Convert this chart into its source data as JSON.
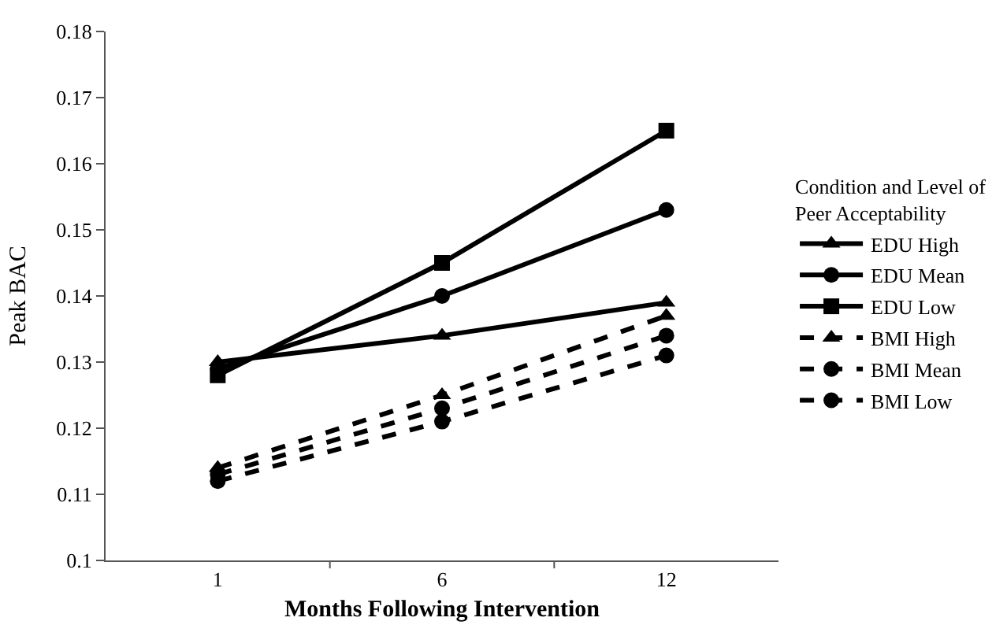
{
  "chart_data": {
    "type": "line",
    "xlabel": "Months Following Intervention",
    "ylabel": "Peak BAC",
    "legend_title": "Condition and Level of Peer Acceptability",
    "legend": "right",
    "categories": [
      "1",
      "6",
      "12"
    ],
    "ylim": [
      0.1,
      0.18
    ],
    "yticks": [
      0.1,
      0.11,
      0.12,
      0.13,
      0.14,
      0.15,
      0.16,
      0.17,
      0.18
    ],
    "series": [
      {
        "name": "EDU High",
        "color": "#000000",
        "marker": "triangle",
        "line_style": "solid",
        "values": [
          0.13,
          0.134,
          0.139
        ]
      },
      {
        "name": "EDU Mean",
        "color": "#000000",
        "marker": "circle",
        "line_style": "solid",
        "values": [
          0.129,
          0.14,
          0.153
        ]
      },
      {
        "name": "EDU Low",
        "color": "#000000",
        "marker": "square",
        "line_style": "solid",
        "values": [
          0.128,
          0.145,
          0.165
        ]
      },
      {
        "name": "BMI High",
        "color": "#000000",
        "marker": "triangle",
        "line_style": "dashed",
        "values": [
          0.114,
          0.125,
          0.137
        ]
      },
      {
        "name": "BMI Mean",
        "color": "#000000",
        "marker": "circle",
        "line_style": "dashed",
        "values": [
          0.113,
          0.123,
          0.134
        ]
      },
      {
        "name": "BMI Low",
        "color": "#000000",
        "marker": "circle",
        "line_style": "dashed",
        "values": [
          0.112,
          0.121,
          0.131
        ]
      }
    ]
  }
}
